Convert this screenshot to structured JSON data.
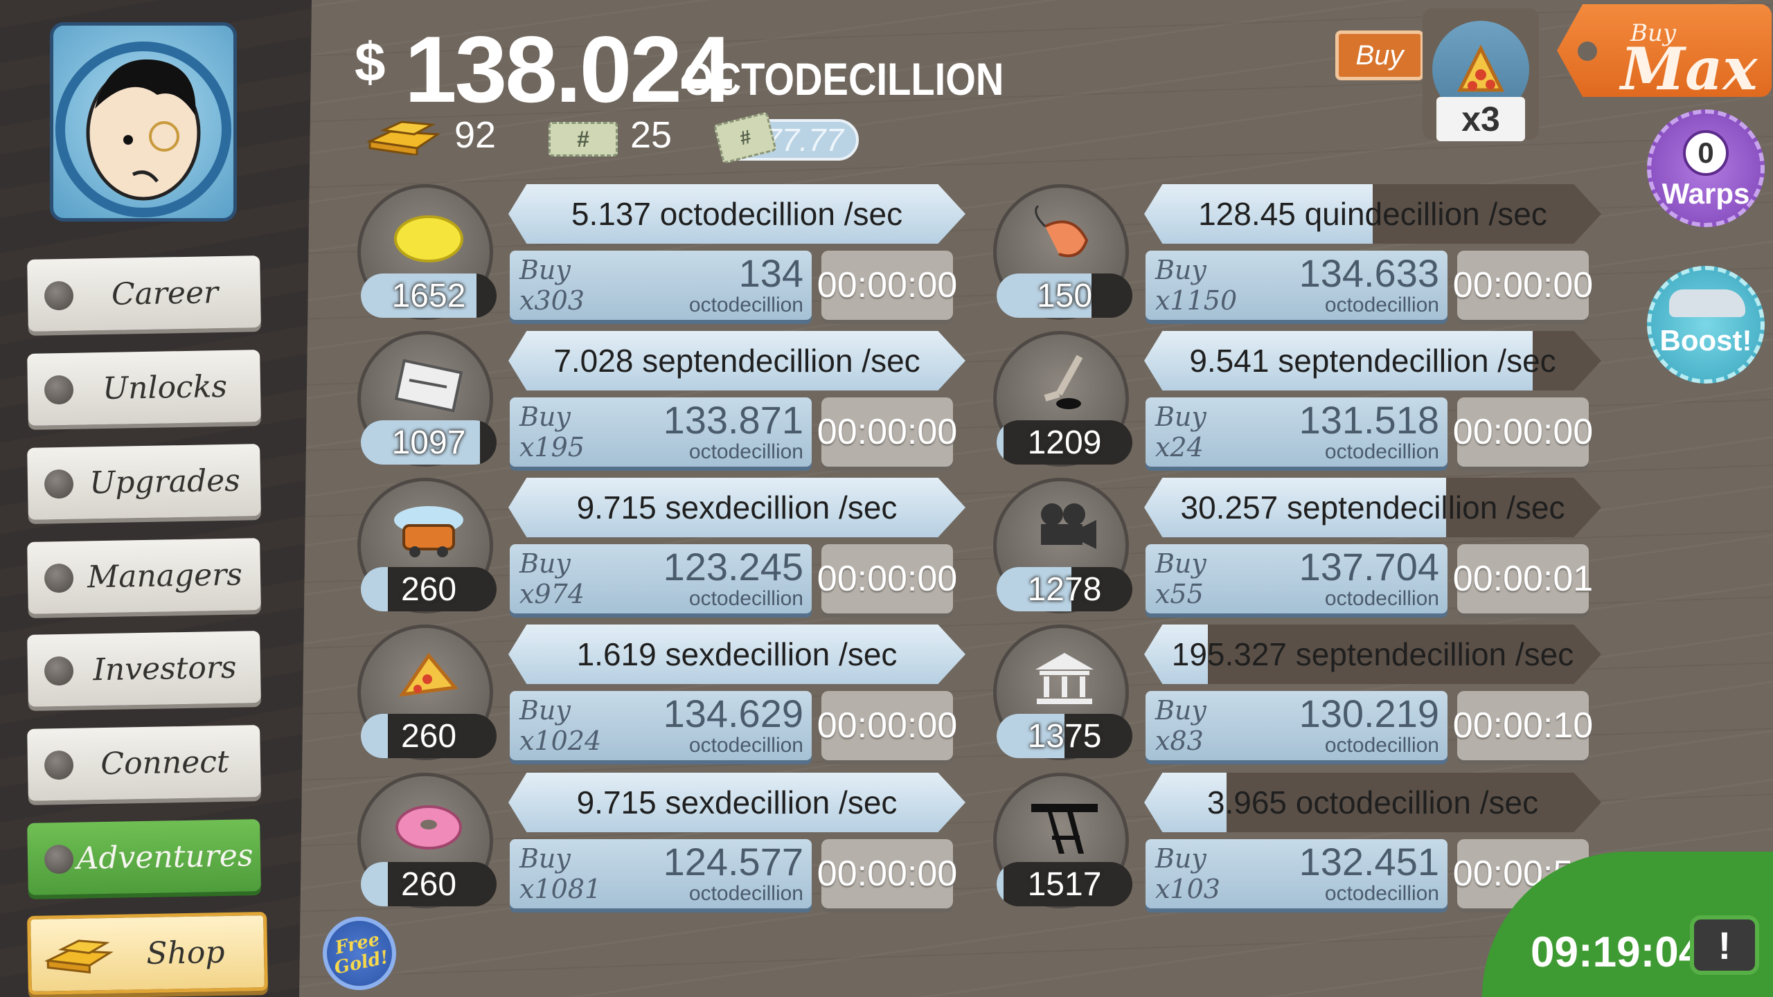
{
  "header": {
    "currency_symbol": "$",
    "balance": "138.024",
    "balance_unit": "OCTODECILLION",
    "gold_count": "92",
    "megabucks_count": "25",
    "multiplier": "x77.77"
  },
  "top_right": {
    "buy_label": "Buy",
    "buy_amount": "x3",
    "buy_max_line1": "Buy",
    "buy_max_line2": "Max",
    "warps_count": "0",
    "warps_label": "Warps",
    "boost_label": "Boost!"
  },
  "sidebar": {
    "items": [
      {
        "label": "Career"
      },
      {
        "label": "Unlocks"
      },
      {
        "label": "Upgrades"
      },
      {
        "label": "Managers"
      },
      {
        "label": "Investors"
      },
      {
        "label": "Connect"
      },
      {
        "label": "Adventures"
      },
      {
        "label": "Shop"
      }
    ]
  },
  "businesses": [
    {
      "icon": "lemon-icon",
      "owned": "1652",
      "owned_fill": 0.85,
      "rate": "5.137 octodecillion /sec",
      "rate_fill": 1.0,
      "buy_label": "Buy",
      "buy_qty": "x303",
      "cost": "134",
      "cost_unit": "octodecillion",
      "timer": "00:00:00"
    },
    {
      "icon": "newspaper-icon",
      "owned": "1097",
      "owned_fill": 0.88,
      "rate": "7.028 septendecillion /sec",
      "rate_fill": 1.0,
      "buy_label": "Buy",
      "buy_qty": "x195",
      "cost": "133.871",
      "cost_unit": "octodecillion",
      "timer": "00:00:00"
    },
    {
      "icon": "car-wash-icon",
      "owned": "260",
      "owned_fill": 0.2,
      "rate": "9.715 sexdecillion /sec",
      "rate_fill": 1.0,
      "buy_label": "Buy",
      "buy_qty": "x974",
      "cost": "123.245",
      "cost_unit": "octodecillion",
      "timer": "00:00:00"
    },
    {
      "icon": "pizza-icon",
      "owned": "260",
      "owned_fill": 0.2,
      "rate": "1.619 sexdecillion /sec",
      "rate_fill": 1.0,
      "buy_label": "Buy",
      "buy_qty": "x1024",
      "cost": "134.629",
      "cost_unit": "octodecillion",
      "timer": "00:00:00"
    },
    {
      "icon": "donut-icon",
      "owned": "260",
      "owned_fill": 0.2,
      "rate": "9.715 sexdecillion /sec",
      "rate_fill": 1.0,
      "buy_label": "Buy",
      "buy_qty": "x1081",
      "cost": "124.577",
      "cost_unit": "octodecillion",
      "timer": "00:00:00"
    },
    {
      "icon": "shrimp-icon",
      "owned": "150",
      "owned_fill": 0.7,
      "rate": "128.45 quindecillion /sec",
      "rate_fill": 0.5,
      "buy_label": "Buy",
      "buy_qty": "x1150",
      "cost": "134.633",
      "cost_unit": "octodecillion",
      "timer": "00:00:00"
    },
    {
      "icon": "hockey-icon",
      "owned": "1209",
      "owned_fill": 0.05,
      "rate": "9.541 septendecillion /sec",
      "rate_fill": 0.85,
      "buy_label": "Buy",
      "buy_qty": "x24",
      "cost": "131.518",
      "cost_unit": "octodecillion",
      "timer": "00:00:00"
    },
    {
      "icon": "movie-camera-icon",
      "owned": "1278",
      "owned_fill": 0.55,
      "rate": "30.257 septendecillion /sec",
      "rate_fill": 0.66,
      "buy_label": "Buy",
      "buy_qty": "x55",
      "cost": "137.704",
      "cost_unit": "octodecillion",
      "timer": "00:00:01"
    },
    {
      "icon": "bank-icon",
      "owned": "1375",
      "owned_fill": 0.5,
      "rate": "195.327 septendecillion /sec",
      "rate_fill": 0.14,
      "buy_label": "Buy",
      "buy_qty": "x83",
      "cost": "130.219",
      "cost_unit": "octodecillion",
      "timer": "00:00:10"
    },
    {
      "icon": "oil-rig-icon",
      "owned": "1517",
      "owned_fill": 0.05,
      "rate": "3.965 octodecillion /sec",
      "rate_fill": 0.18,
      "buy_label": "Buy",
      "buy_qty": "x103",
      "cost": "132.451",
      "cost_unit": "octodecillion",
      "timer": "00:00:58"
    }
  ],
  "free_gold": "Free Gold!",
  "clock": "09:19:04",
  "tv_symbol": "!"
}
